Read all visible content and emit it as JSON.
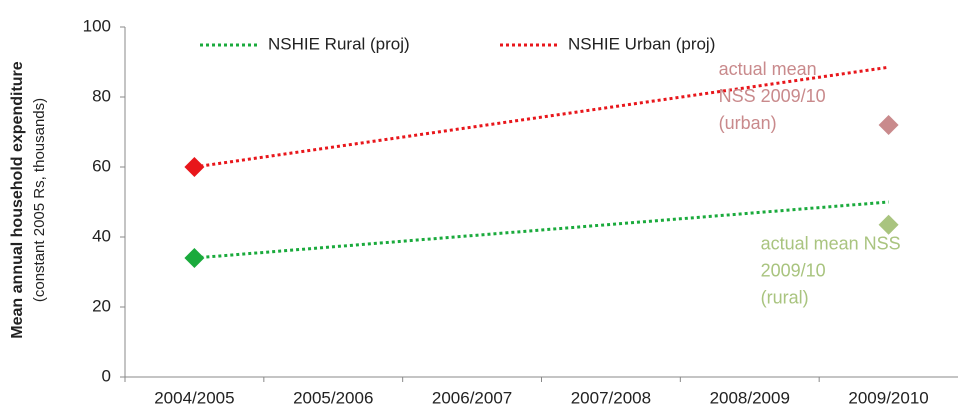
{
  "chart_data": {
    "type": "line",
    "y_label": [
      "Mean annual household expenditure",
      "(constant 2005 Rs, thousands)"
    ],
    "categories": [
      "2004/2005",
      "2005/2006",
      "2006/2007",
      "2007/2008",
      "2008/2009",
      "2009/2010"
    ],
    "series": [
      {
        "name": "NSHIE Rural (proj)",
        "color": "#1aaa3c",
        "marker_at": "2004/2005",
        "values": [
          34,
          37.2,
          40.4,
          43.6,
          46.8,
          50
        ]
      },
      {
        "name": "NSHIE Urban (proj)",
        "color": "#e8161b",
        "marker_at": "2004/2005",
        "values": [
          60,
          65.7,
          71.4,
          77.1,
          82.8,
          88.5
        ]
      }
    ],
    "points": [
      {
        "category": "2009/2010",
        "value": 72,
        "color": "#c98a8c",
        "label": [
          "actual mean",
          "NSS 2009/10",
          "(urban)"
        ]
      },
      {
        "category": "2009/2010",
        "value": 43.5,
        "color": "#a9c47f",
        "label": [
          "actual mean NSS",
          "2009/10",
          "(rural)"
        ]
      }
    ],
    "ylim": [
      0,
      100
    ],
    "yticks": [
      0,
      20,
      40,
      60,
      80,
      100
    ],
    "legend": "top"
  }
}
